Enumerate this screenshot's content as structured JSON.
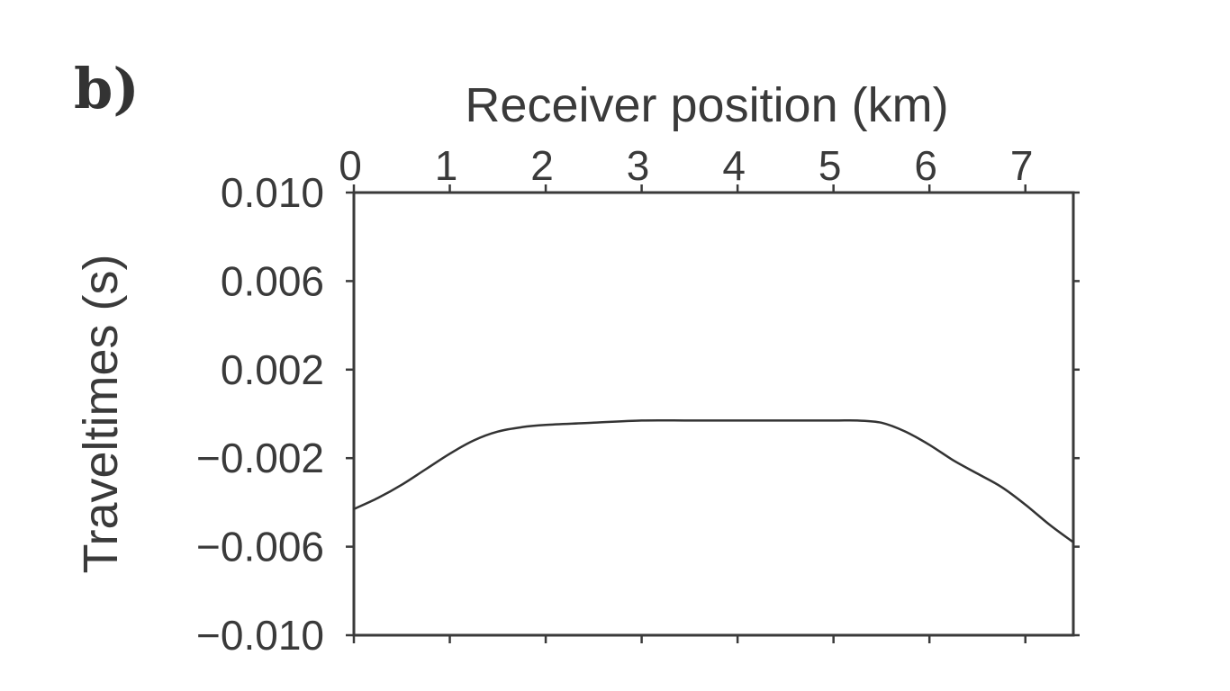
{
  "panel_label": "b)",
  "chart_data": {
    "type": "line",
    "title": "",
    "xlabel": "Receiver position (km)",
    "ylabel": "Traveltimes (s)",
    "xlim": [
      0,
      7.5
    ],
    "ylim": [
      -0.01,
      0.01
    ],
    "x_axis_position": "top",
    "grid": false,
    "x_ticks": [
      0,
      1,
      2,
      3,
      4,
      5,
      6,
      7
    ],
    "x_tick_labels": [
      "0",
      "1",
      "2",
      "3",
      "4",
      "5",
      "6",
      "7"
    ],
    "y_ticks": [
      0.01,
      0.006,
      0.002,
      -0.002,
      -0.006,
      -0.01
    ],
    "y_tick_labels": [
      "0.010",
      "0.006",
      "0.002",
      "−0.002",
      "−0.006",
      "−0.010"
    ],
    "series": [
      {
        "x": [
          0,
          0.25,
          0.5,
          0.75,
          1.0,
          1.25,
          1.5,
          1.75,
          2.0,
          2.5,
          3.0,
          3.5,
          4.0,
          4.5,
          5.0,
          5.25,
          5.5,
          5.75,
          6.0,
          6.25,
          6.5,
          6.75,
          7.0,
          7.25,
          7.5
        ],
        "y": [
          -0.0043,
          -0.0038,
          -0.0032,
          -0.0025,
          -0.0018,
          -0.0012,
          -0.0008,
          -0.0006,
          -0.0005,
          -0.0004,
          -0.0003,
          -0.0003,
          -0.0003,
          -0.0003,
          -0.0003,
          -0.0003,
          -0.0004,
          -0.0008,
          -0.0014,
          -0.0021,
          -0.0027,
          -0.0033,
          -0.0041,
          -0.005,
          -0.0058
        ]
      }
    ]
  }
}
